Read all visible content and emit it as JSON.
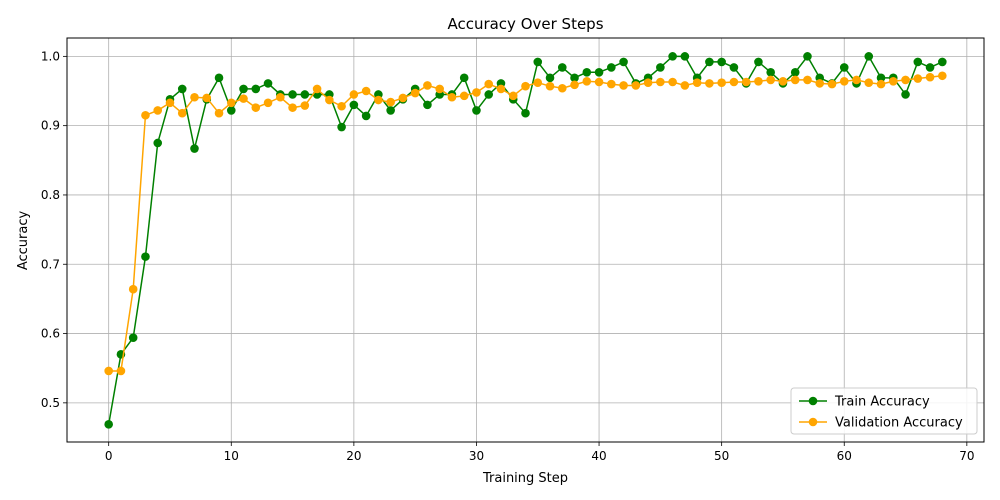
{
  "chart_data": {
    "type": "line",
    "title": "Accuracy Over Steps",
    "xlabel": "Training Step",
    "ylabel": "Accuracy",
    "xlim": [
      -3.4,
      71.4
    ],
    "ylim": [
      0.4435,
      1.0265
    ],
    "xticks": [
      0,
      10,
      20,
      30,
      40,
      50,
      60,
      70
    ],
    "yticks": [
      0.5,
      0.6,
      0.7,
      0.8,
      0.9,
      1.0
    ],
    "ytick_labels": [
      "0.5",
      "0.6",
      "0.7",
      "0.8",
      "0.9",
      "1.0"
    ],
    "grid": true,
    "legend_position": "lower-right",
    "x": [
      0,
      1,
      2,
      3,
      4,
      5,
      6,
      7,
      8,
      9,
      10,
      11,
      12,
      13,
      14,
      15,
      16,
      17,
      18,
      19,
      20,
      21,
      22,
      23,
      24,
      25,
      26,
      27,
      28,
      29,
      30,
      31,
      32,
      33,
      34,
      35,
      36,
      37,
      38,
      39,
      40,
      41,
      42,
      43,
      44,
      45,
      46,
      47,
      48,
      49,
      50,
      51,
      52,
      53,
      54,
      55,
      56,
      57,
      58,
      59,
      60,
      61,
      62,
      63,
      64,
      65,
      66,
      67,
      68
    ],
    "series": [
      {
        "name": "Train Accuracy",
        "color": "#008000",
        "values": [
          0.469,
          0.57,
          0.594,
          0.711,
          0.875,
          0.938,
          0.953,
          0.867,
          0.938,
          0.969,
          0.922,
          0.953,
          0.953,
          0.961,
          0.945,
          0.945,
          0.945,
          0.945,
          0.945,
          0.898,
          0.93,
          0.914,
          0.945,
          0.922,
          0.938,
          0.953,
          0.93,
          0.945,
          0.945,
          0.969,
          0.922,
          0.945,
          0.961,
          0.938,
          0.918,
          0.992,
          0.969,
          0.984,
          0.969,
          0.977,
          0.977,
          0.984,
          0.992,
          0.961,
          0.969,
          0.984,
          1.0,
          1.0,
          0.969,
          0.992,
          0.992,
          0.984,
          0.961,
          0.992,
          0.977,
          0.961,
          0.977,
          1.0,
          0.969,
          0.961,
          0.984,
          0.961,
          1.0,
          0.969,
          0.969,
          0.945,
          0.992,
          0.984,
          0.992
        ]
      },
      {
        "name": "Validation Accuracy",
        "color": "#FFA500",
        "values": [
          0.546,
          0.546,
          0.664,
          0.915,
          0.922,
          0.933,
          0.918,
          0.941,
          0.94,
          0.918,
          0.933,
          0.939,
          0.926,
          0.933,
          0.941,
          0.926,
          0.929,
          0.953,
          0.937,
          0.928,
          0.945,
          0.95,
          0.937,
          0.934,
          0.94,
          0.947,
          0.958,
          0.953,
          0.941,
          0.943,
          0.948,
          0.96,
          0.953,
          0.943,
          0.957,
          0.962,
          0.957,
          0.954,
          0.959,
          0.964,
          0.963,
          0.96,
          0.958,
          0.958,
          0.962,
          0.963,
          0.963,
          0.958,
          0.962,
          0.961,
          0.962,
          0.963,
          0.963,
          0.964,
          0.966,
          0.964,
          0.966,
          0.966,
          0.961,
          0.96,
          0.964,
          0.966,
          0.962,
          0.96,
          0.964,
          0.966,
          0.968,
          0.97,
          0.972
        ]
      }
    ]
  }
}
